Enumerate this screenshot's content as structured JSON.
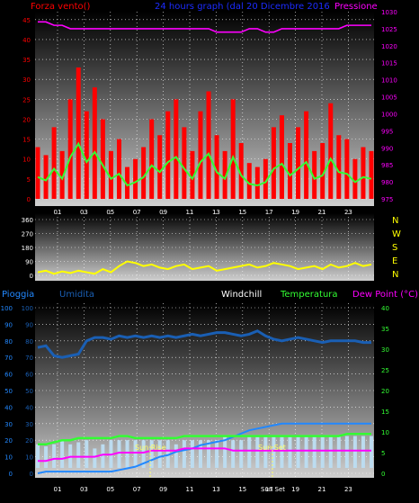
{
  "header": {
    "left": "Forza vento()",
    "center": "24 hours graph (dal   20 Dicembre 2016",
    "right": "Pressione"
  },
  "x_ticks": [
    "01",
    "03",
    "05",
    "07",
    "09",
    "11",
    "13",
    "15",
    "17",
    "19",
    "21",
    "23"
  ],
  "wind_axis": [
    "0",
    "5",
    "10",
    "15",
    "20",
    "25",
    "30",
    "35",
    "40",
    "45"
  ],
  "pressure_axis": [
    "975",
    "980",
    "985",
    "990",
    "995",
    "1000",
    "1005",
    "1010",
    "1015",
    "1020",
    "1025",
    "1030"
  ],
  "dir_axis": [
    "0",
    "90",
    "180",
    "270",
    "360"
  ],
  "compass": [
    "N",
    "W",
    "S",
    "E",
    "N"
  ],
  "bottom_legend": {
    "rain": "Pioggia",
    "humidity": "Umidita",
    "windchill": "Windchill",
    "temperature": "Temperatura",
    "dewpoint": "Dew Point (°C)"
  },
  "humidity_axis": [
    "0",
    "10",
    "20",
    "30",
    "40",
    "50",
    "60",
    "70",
    "80",
    "90",
    "100"
  ],
  "rain_axis": [
    "0",
    "10",
    "20",
    "30",
    "40",
    "50",
    "60",
    "70",
    "80",
    "90",
    "100"
  ],
  "temp_axis": [
    "0",
    "5",
    "10",
    "15",
    "20",
    "25",
    "30",
    "35",
    "40"
  ],
  "annotations": {
    "sun_rise": "Sun Rise",
    "sun_set": "Sun Set",
    "sun_set_tick": "Sun Set"
  },
  "colors": {
    "wind": "#ff0000",
    "gust_avg": "#33ff33",
    "pressure": "#ff00ff",
    "direction": "#ffff00",
    "humidity": "#1a5fb4",
    "rain": "#2288ff",
    "temperature": "#33ff33",
    "dewpoint": "#ff00ff",
    "windchill": "#bcdcf0"
  },
  "chart_data": [
    {
      "type": "line",
      "title": "24 hours graph (dal   20 Dicembre 2016",
      "series": [
        {
          "name": "Forza vento()",
          "values": [
            13,
            11,
            18,
            12,
            25,
            33,
            22,
            28,
            20,
            12,
            15,
            8,
            10,
            13,
            20,
            16,
            22,
            25,
            18,
            12,
            22,
            27,
            16,
            12,
            25,
            14,
            9,
            8,
            10,
            18,
            21,
            14,
            18,
            22,
            12,
            14,
            24,
            16,
            15,
            10,
            13,
            12
          ]
        },
        {
          "name": "Pressione",
          "values": [
            1027,
            1027,
            1026,
            1026,
            1025,
            1025,
            1025,
            1025,
            1025,
            1025,
            1025,
            1025,
            1025,
            1025,
            1025,
            1025,
            1025,
            1025,
            1025,
            1025,
            1025,
            1025,
            1024,
            1024,
            1024,
            1024,
            1025,
            1025,
            1024,
            1024,
            1025,
            1025,
            1025,
            1025,
            1025,
            1025,
            1025,
            1025,
            1026,
            1026,
            1026,
            1026
          ]
        }
      ],
      "ylim": [
        0,
        47
      ],
      "y2lim": [
        975,
        1030
      ]
    },
    {
      "type": "line",
      "series": [
        {
          "name": "N W S E N",
          "values": [
            20,
            30,
            10,
            25,
            15,
            30,
            20,
            10,
            40,
            20,
            60,
            90,
            80,
            60,
            70,
            50,
            40,
            60,
            70,
            40,
            50,
            60,
            30,
            40,
            50,
            60,
            70,
            50,
            60,
            80,
            70,
            60,
            40,
            50,
            60,
            40,
            70,
            50,
            60,
            80,
            60,
            70
          ]
        }
      ],
      "ylim": [
        0,
        360
      ]
    },
    {
      "type": "line",
      "series": [
        {
          "name": "Umidita",
          "values": [
            76,
            77,
            71,
            70,
            71,
            72,
            80,
            82,
            82,
            81,
            83,
            82,
            83,
            82,
            83,
            82,
            83,
            82,
            83,
            84,
            83,
            84,
            85,
            85,
            84,
            83,
            84,
            86,
            83,
            81,
            80,
            81,
            82,
            81,
            80,
            79,
            80,
            80,
            80,
            80,
            79,
            79
          ]
        },
        {
          "name": "Pioggia",
          "values": [
            0,
            1,
            1,
            1,
            1,
            1,
            1,
            1,
            1,
            1,
            2,
            3,
            4,
            6,
            8,
            10,
            11,
            13,
            14,
            15,
            17,
            18,
            19,
            20,
            22,
            24,
            26,
            27,
            28,
            29,
            30,
            30,
            30,
            30,
            30,
            30,
            30,
            30,
            30,
            30,
            30,
            30
          ]
        },
        {
          "name": "Temperatura",
          "values": [
            7,
            7,
            7.5,
            8,
            8,
            8.5,
            8.5,
            8.5,
            8.5,
            8.5,
            9,
            9,
            8.5,
            8.5,
            8.5,
            8.5,
            8.5,
            8.5,
            9,
            9,
            9,
            9,
            9,
            9,
            9,
            9,
            9,
            9,
            9,
            9,
            9,
            9,
            9,
            9,
            9,
            9,
            9,
            9,
            9.5,
            9.5,
            9.5,
            9.5
          ]
        },
        {
          "name": "Dew Point (°C)",
          "values": [
            3,
            3,
            3.5,
            3.5,
            4,
            4,
            4,
            4,
            4.5,
            4.5,
            5,
            5,
            5,
            5,
            5.5,
            5.5,
            5.5,
            5.5,
            6,
            6,
            6,
            6,
            6,
            6,
            5.5,
            5.5,
            5.5,
            5.5,
            5.5,
            5.5,
            5.5,
            5.5,
            5.5,
            5.5,
            5.5,
            5.5,
            5.5,
            5.5,
            5.5,
            5.5,
            5.5,
            5.5
          ]
        },
        {
          "name": "Windchill",
          "values": [
            7,
            6.5,
            7,
            8,
            7,
            7.5,
            8,
            6,
            7,
            8,
            8,
            8,
            8,
            8,
            8,
            8,
            8,
            7,
            8,
            8,
            8,
            8,
            8,
            9,
            8,
            8,
            9,
            9,
            9,
            9,
            9,
            9,
            9,
            9,
            9,
            9,
            9,
            9,
            9,
            9,
            9,
            9
          ]
        }
      ],
      "ylim": [
        0,
        100
      ],
      "y2lim": [
        0,
        40
      ]
    }
  ]
}
